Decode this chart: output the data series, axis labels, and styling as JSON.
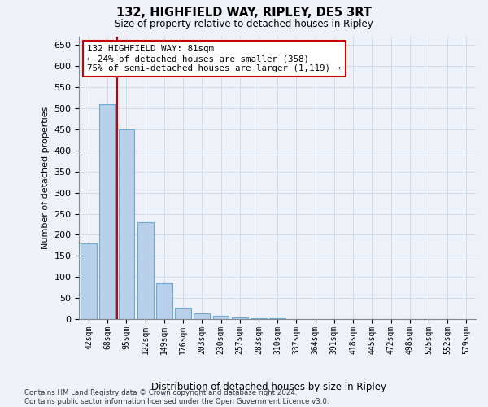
{
  "title": "132, HIGHFIELD WAY, RIPLEY, DE5 3RT",
  "subtitle": "Size of property relative to detached houses in Ripley",
  "xlabel": "Distribution of detached houses by size in Ripley",
  "ylabel": "Number of detached properties",
  "bar_values": [
    180,
    510,
    450,
    230,
    85,
    27,
    13,
    7,
    5,
    3,
    2,
    1,
    1,
    1,
    1,
    1,
    1,
    1,
    1,
    1
  ],
  "bar_labels": [
    "42sqm",
    "68sqm",
    "95sqm",
    "122sqm",
    "149sqm",
    "176sqm",
    "203sqm",
    "230sqm",
    "257sqm",
    "283sqm",
    "310sqm",
    "337sqm",
    "364sqm",
    "391sqm",
    "418sqm",
    "445sqm",
    "472sqm",
    "498sqm",
    "525sqm",
    "552sqm",
    "579sqm"
  ],
  "bar_color": "#b8d0ea",
  "bar_edge_color": "#6aaad4",
  "vline_color": "#cc0000",
  "vline_x": 1.5,
  "annotation_text": "132 HIGHFIELD WAY: 81sqm\n← 24% of detached houses are smaller (358)\n75% of semi-detached houses are larger (1,119) →",
  "annotation_box_color": "#ffffff",
  "annotation_box_edge": "#cc0000",
  "ylim": [
    0,
    670
  ],
  "yticks": [
    0,
    50,
    100,
    150,
    200,
    250,
    300,
    350,
    400,
    450,
    500,
    550,
    600,
    650
  ],
  "grid_color": "#ccd8e8",
  "footer_text": "Contains HM Land Registry data © Crown copyright and database right 2024.\nContains public sector information licensed under the Open Government Licence v3.0.",
  "background_color": "#eef2f8"
}
